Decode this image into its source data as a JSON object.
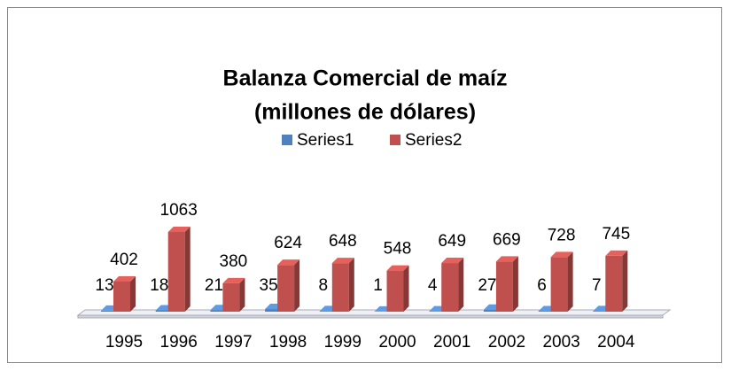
{
  "chart_data": {
    "type": "bar3d",
    "title": "Balanza Comercial de maíz",
    "subtitle": "(millones de dólares)",
    "categories": [
      "1995",
      "1996",
      "1997",
      "1998",
      "1999",
      "2000",
      "2001",
      "2002",
      "2003",
      "2004"
    ],
    "series": [
      {
        "name": "Series1",
        "color": "#4f81bd",
        "values": [
          13,
          18,
          21,
          35,
          8,
          1,
          4,
          27,
          6,
          7
        ]
      },
      {
        "name": "Series2",
        "color": "#c0504d",
        "values": [
          402,
          1063,
          380,
          624,
          648,
          548,
          649,
          669,
          728,
          745
        ]
      }
    ],
    "legend": "top"
  }
}
